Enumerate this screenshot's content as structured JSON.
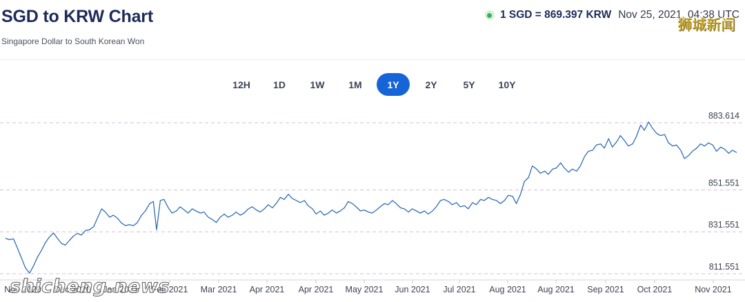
{
  "header": {
    "title": "SGD to KRW Chart",
    "subtitle": "Singapore Dollar to South Korean Won",
    "rate": "1 SGD = 869.397 KRW",
    "timestamp": "Nov 25, 2021, 04:38 UTC"
  },
  "ranges": [
    {
      "label": "12H",
      "active": false
    },
    {
      "label": "1D",
      "active": false
    },
    {
      "label": "1W",
      "active": false
    },
    {
      "label": "1M",
      "active": false
    },
    {
      "label": "1Y",
      "active": true
    },
    {
      "label": "2Y",
      "active": false
    },
    {
      "label": "5Y",
      "active": false
    },
    {
      "label": "10Y",
      "active": false
    }
  ],
  "watermarks": {
    "top": "狮城新闻",
    "bottom": "shicheng.news"
  },
  "colors": {
    "line": "#2f6db5",
    "grid": "#d9b8dc",
    "accent": "#1565d8",
    "live": "#35b255"
  },
  "chart_data": {
    "type": "line",
    "title": "",
    "xlabel": "",
    "ylabel": "",
    "yticks": [
      "883.614",
      "851.551",
      "831.551",
      "811.551"
    ],
    "ylim": [
      810,
      890
    ],
    "xticks": [
      {
        "label": "Nov 2020",
        "x": 0
      },
      {
        "label": "Dec 2020",
        "x": 0.5
      },
      {
        "label": "Jan 2021",
        "x": 1
      },
      {
        "label": "Feb 2021",
        "x": 2
      },
      {
        "label": "Mar 2021",
        "x": 3
      },
      {
        "label": "Apr 2021",
        "x": 4
      },
      {
        "label": "Apr 2021",
        "x": 5
      },
      {
        "label": "May 2021",
        "x": 6
      },
      {
        "label": "Jun 2021",
        "x": 7
      },
      {
        "label": "Jul 2021",
        "x": 8
      },
      {
        "label": "Aug 2021",
        "x": 9
      },
      {
        "label": "Aug 2021",
        "x": 10
      },
      {
        "label": "Sep 2021",
        "x": 11
      },
      {
        "label": "Oct 2021",
        "x": 12
      },
      {
        "label": "Nov 2021",
        "x": 13
      }
    ],
    "series": [
      {
        "values": [
          [
            0.0,
            828.5
          ],
          [
            0.07,
            827.8
          ],
          [
            0.15,
            828.2
          ],
          [
            0.22,
            824.0
          ],
          [
            0.3,
            819.0
          ],
          [
            0.37,
            814.5
          ],
          [
            0.45,
            811.8
          ],
          [
            0.52,
            815.0
          ],
          [
            0.6,
            819.5
          ],
          [
            0.67,
            822.5
          ],
          [
            0.75,
            826.5
          ],
          [
            0.82,
            829.0
          ],
          [
            0.9,
            831.0
          ],
          [
            0.97,
            828.5
          ],
          [
            1.05,
            826.0
          ],
          [
            1.12,
            825.2
          ],
          [
            1.2,
            827.5
          ],
          [
            1.27,
            829.5
          ],
          [
            1.35,
            830.8
          ],
          [
            1.42,
            830.0
          ],
          [
            1.5,
            832.2
          ],
          [
            1.57,
            832.5
          ],
          [
            1.65,
            834.0
          ],
          [
            1.72,
            838.0
          ],
          [
            1.8,
            842.5
          ],
          [
            1.87,
            841.0
          ],
          [
            1.95,
            838.5
          ],
          [
            2.02,
            839.5
          ],
          [
            2.1,
            838.0
          ],
          [
            2.17,
            835.8
          ],
          [
            2.25,
            834.5
          ],
          [
            2.32,
            835.0
          ],
          [
            2.4,
            834.5
          ],
          [
            2.47,
            836.0
          ],
          [
            2.55,
            839.5
          ],
          [
            2.62,
            841.5
          ],
          [
            2.7,
            845.0
          ],
          [
            2.77,
            846.0
          ],
          [
            2.83,
            832.5
          ],
          [
            2.9,
            846.5
          ],
          [
            2.97,
            847.0
          ],
          [
            3.05,
            843.0
          ],
          [
            3.12,
            840.5
          ],
          [
            3.2,
            841.5
          ],
          [
            3.27,
            843.5
          ],
          [
            3.35,
            842.0
          ],
          [
            3.42,
            840.5
          ],
          [
            3.5,
            842.5
          ],
          [
            3.57,
            841.5
          ],
          [
            3.65,
            840.5
          ],
          [
            3.72,
            841.0
          ],
          [
            3.8,
            838.5
          ],
          [
            3.87,
            837.5
          ],
          [
            3.95,
            836.0
          ],
          [
            4.02,
            838.5
          ],
          [
            4.1,
            840.0
          ],
          [
            4.17,
            838.5
          ],
          [
            4.25,
            839.5
          ],
          [
            4.32,
            841.0
          ],
          [
            4.4,
            839.5
          ],
          [
            4.47,
            840.5
          ],
          [
            4.55,
            842.5
          ],
          [
            4.62,
            843.5
          ],
          [
            4.7,
            842.0
          ],
          [
            4.77,
            841.0
          ],
          [
            4.85,
            842.5
          ],
          [
            4.92,
            844.5
          ],
          [
            5.0,
            843.0
          ],
          [
            5.07,
            845.0
          ],
          [
            5.15,
            848.0
          ],
          [
            5.22,
            847.0
          ],
          [
            5.3,
            849.5
          ],
          [
            5.37,
            847.5
          ],
          [
            5.45,
            846.5
          ],
          [
            5.52,
            845.5
          ],
          [
            5.6,
            846.5
          ],
          [
            5.67,
            844.0
          ],
          [
            5.75,
            842.5
          ],
          [
            5.82,
            840.0
          ],
          [
            5.9,
            841.5
          ],
          [
            5.97,
            839.5
          ],
          [
            6.05,
            840.5
          ],
          [
            6.12,
            842.0
          ],
          [
            6.2,
            840.5
          ],
          [
            6.27,
            841.5
          ],
          [
            6.35,
            843.0
          ],
          [
            6.42,
            846.0
          ],
          [
            6.5,
            845.0
          ],
          [
            6.57,
            843.5
          ],
          [
            6.65,
            841.5
          ],
          [
            6.72,
            842.0
          ],
          [
            6.8,
            841.0
          ],
          [
            6.87,
            840.5
          ],
          [
            6.95,
            842.0
          ],
          [
            7.02,
            843.5
          ],
          [
            7.1,
            845.0
          ],
          [
            7.17,
            844.5
          ],
          [
            7.25,
            846.5
          ],
          [
            7.32,
            845.0
          ],
          [
            7.4,
            843.0
          ],
          [
            7.47,
            842.5
          ],
          [
            7.55,
            841.0
          ],
          [
            7.62,
            842.5
          ],
          [
            7.7,
            841.5
          ],
          [
            7.77,
            840.5
          ],
          [
            7.85,
            841.5
          ],
          [
            7.92,
            840.0
          ],
          [
            8.0,
            841.5
          ],
          [
            8.07,
            843.5
          ],
          [
            8.15,
            846.5
          ],
          [
            8.22,
            847.0
          ],
          [
            8.3,
            846.0
          ],
          [
            8.37,
            844.5
          ],
          [
            8.45,
            845.5
          ],
          [
            8.52,
            843.5
          ],
          [
            8.6,
            844.0
          ],
          [
            8.67,
            842.5
          ],
          [
            8.75,
            845.5
          ],
          [
            8.82,
            844.5
          ],
          [
            8.9,
            847.0
          ],
          [
            8.97,
            846.5
          ],
          [
            9.05,
            848.0
          ],
          [
            9.12,
            847.0
          ],
          [
            9.2,
            846.5
          ],
          [
            9.27,
            845.0
          ],
          [
            9.35,
            846.5
          ],
          [
            9.42,
            849.0
          ],
          [
            9.5,
            848.5
          ],
          [
            9.57,
            845.0
          ],
          [
            9.65,
            849.5
          ],
          [
            9.72,
            855.5
          ],
          [
            9.8,
            857.5
          ],
          [
            9.87,
            863.0
          ],
          [
            9.95,
            861.5
          ],
          [
            10.02,
            859.5
          ],
          [
            10.1,
            860.5
          ],
          [
            10.17,
            859.0
          ],
          [
            10.25,
            861.5
          ],
          [
            10.32,
            862.0
          ],
          [
            10.4,
            864.5
          ],
          [
            10.47,
            862.0
          ],
          [
            10.55,
            860.0
          ],
          [
            10.62,
            861.5
          ],
          [
            10.7,
            860.5
          ],
          [
            10.77,
            863.0
          ],
          [
            10.85,
            867.5
          ],
          [
            10.92,
            870.0
          ],
          [
            11.0,
            870.5
          ],
          [
            11.07,
            873.0
          ],
          [
            11.15,
            873.5
          ],
          [
            11.22,
            871.5
          ],
          [
            11.3,
            876.0
          ],
          [
            11.37,
            872.0
          ],
          [
            11.45,
            874.5
          ],
          [
            11.52,
            877.5
          ],
          [
            11.6,
            875.0
          ],
          [
            11.67,
            872.5
          ],
          [
            11.75,
            873.5
          ],
          [
            11.82,
            877.0
          ],
          [
            11.9,
            882.5
          ],
          [
            11.97,
            880.0
          ],
          [
            12.05,
            884.0
          ],
          [
            12.12,
            881.0
          ],
          [
            12.2,
            878.5
          ],
          [
            12.27,
            877.5
          ],
          [
            12.35,
            878.0
          ],
          [
            12.42,
            874.0
          ],
          [
            12.5,
            872.5
          ],
          [
            12.57,
            873.0
          ],
          [
            12.65,
            870.5
          ],
          [
            12.72,
            866.5
          ],
          [
            12.8,
            868.0
          ],
          [
            12.87,
            870.0
          ],
          [
            12.95,
            871.5
          ],
          [
            13.02,
            873.5
          ],
          [
            13.1,
            872.5
          ],
          [
            13.17,
            874.0
          ],
          [
            13.25,
            873.0
          ],
          [
            13.32,
            870.0
          ],
          [
            13.4,
            872.0
          ],
          [
            13.47,
            871.0
          ],
          [
            13.55,
            869.0
          ],
          [
            13.62,
            870.5
          ],
          [
            13.7,
            869.4
          ]
        ]
      }
    ]
  }
}
